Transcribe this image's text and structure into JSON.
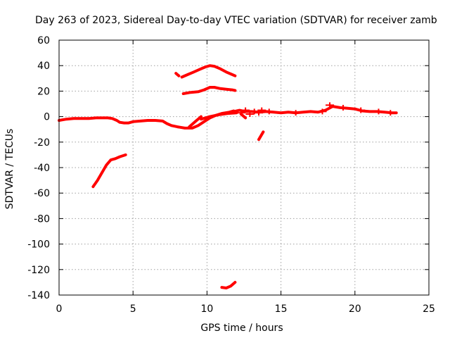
{
  "chart_data": {
    "type": "scatter",
    "title": "Day 263 of 2023, Sidereal Day-to-day VTEC variation (SDTVAR) for receiver zamb",
    "xlabel": "GPS time / hours",
    "ylabel": "SDTVAR / TECUs",
    "xlim": [
      0,
      25
    ],
    "ylim": [
      -140,
      60
    ],
    "xticks": [
      0,
      5,
      10,
      15,
      20,
      25
    ],
    "yticks": [
      60,
      40,
      20,
      0,
      -20,
      -40,
      -60,
      -80,
      -100,
      -120,
      -140
    ],
    "grid": true,
    "color": "#ff0000",
    "series": [
      {
        "name": "main-track",
        "x": [
          0,
          0.5,
          1,
          1.5,
          2,
          2.5,
          3,
          3.3,
          3.6,
          3.9,
          4.1,
          4.4,
          4.7,
          5,
          5.5,
          6,
          6.5,
          7,
          7.3,
          7.6,
          8,
          8.5,
          9,
          9.4,
          9.8,
          10.2,
          10.6,
          11,
          11.5,
          11.8
        ],
        "y": [
          -3,
          -2,
          -1.5,
          -1.5,
          -1.5,
          -1,
          -1,
          -1,
          -1.5,
          -3,
          -4.5,
          -5,
          -5,
          -4,
          -3.5,
          -3,
          -3,
          -3.5,
          -5.5,
          -7,
          -8,
          -9,
          -9,
          -7,
          -4,
          -1,
          1,
          2.5,
          3.5,
          4.5
        ]
      },
      {
        "name": "late-track",
        "x": [
          11.8,
          12.2,
          12.6,
          13,
          13.5,
          14,
          14.5,
          15,
          15.5,
          16,
          16.5,
          17,
          17.5,
          18,
          18.5,
          19,
          19.5,
          20,
          20.5,
          21,
          21.5,
          22,
          22.5,
          22.8
        ],
        "y": [
          4,
          5,
          4,
          4,
          3.5,
          4,
          3.5,
          3,
          3.5,
          3,
          3.5,
          4,
          3.5,
          5,
          8,
          7,
          6.5,
          6,
          4.5,
          4,
          4,
          3.5,
          3,
          3
        ]
      },
      {
        "name": "lower-arc",
        "x": [
          2.3,
          2.6,
          2.9,
          3.2,
          3.5,
          3.8,
          4.1,
          4.5
        ],
        "y": [
          -55,
          -50,
          -44,
          -38,
          -34,
          -33,
          -31.5,
          -30
        ]
      },
      {
        "name": "upper-arc-high",
        "x": [
          8.3,
          8.7,
          9.1,
          9.5,
          9.9,
          10.2,
          10.5,
          10.9,
          11.3,
          11.7,
          11.9
        ],
        "y": [
          31,
          33,
          35,
          37,
          39,
          40,
          39.5,
          37.5,
          35,
          33,
          32
        ]
      },
      {
        "name": "upper-arc-low",
        "x": [
          8.4,
          8.9,
          9.4,
          9.8,
          10.2,
          10.5,
          10.9,
          11.3,
          11.7,
          11.9
        ],
        "y": [
          18,
          19,
          19.5,
          21,
          23,
          23,
          22,
          21.5,
          21,
          20.5
        ]
      },
      {
        "name": "short-upper",
        "x": [
          7.9,
          8.1
        ],
        "y": [
          34,
          32
        ]
      },
      {
        "name": "dip-branch",
        "x": [
          8.8,
          9.2,
          9.6
        ],
        "y": [
          -8,
          -4,
          0
        ]
      },
      {
        "name": "rise-branch",
        "x": [
          9.6,
          10.2,
          10.8,
          11.4,
          12
        ],
        "y": [
          -2,
          0,
          1.5,
          2.5,
          3
        ]
      },
      {
        "name": "drop-12-5",
        "x": [
          12.3,
          12.6
        ],
        "y": [
          2,
          -1
        ]
      },
      {
        "name": "drop-13-6",
        "x": [
          13.5,
          13.8
        ],
        "y": [
          -18,
          -12
        ]
      },
      {
        "name": "bottom-arc",
        "x": [
          11,
          11.3,
          11.6,
          11.9
        ],
        "y": [
          -134,
          -134.5,
          -133,
          -130
        ]
      }
    ],
    "scatter_bars": [
      {
        "x": 12.3,
        "y": 3
      },
      {
        "x": 12.6,
        "y": 5
      },
      {
        "x": 12.9,
        "y": 2
      },
      {
        "x": 13.2,
        "y": 4
      },
      {
        "x": 13.5,
        "y": 3
      },
      {
        "x": 13.7,
        "y": 5
      },
      {
        "x": 14.2,
        "y": 4
      },
      {
        "x": 16,
        "y": 3
      },
      {
        "x": 17.8,
        "y": 4
      },
      {
        "x": 18.3,
        "y": 9
      },
      {
        "x": 19.2,
        "y": 7
      },
      {
        "x": 20.4,
        "y": 5
      },
      {
        "x": 21.6,
        "y": 4
      },
      {
        "x": 22.4,
        "y": 3
      }
    ]
  }
}
